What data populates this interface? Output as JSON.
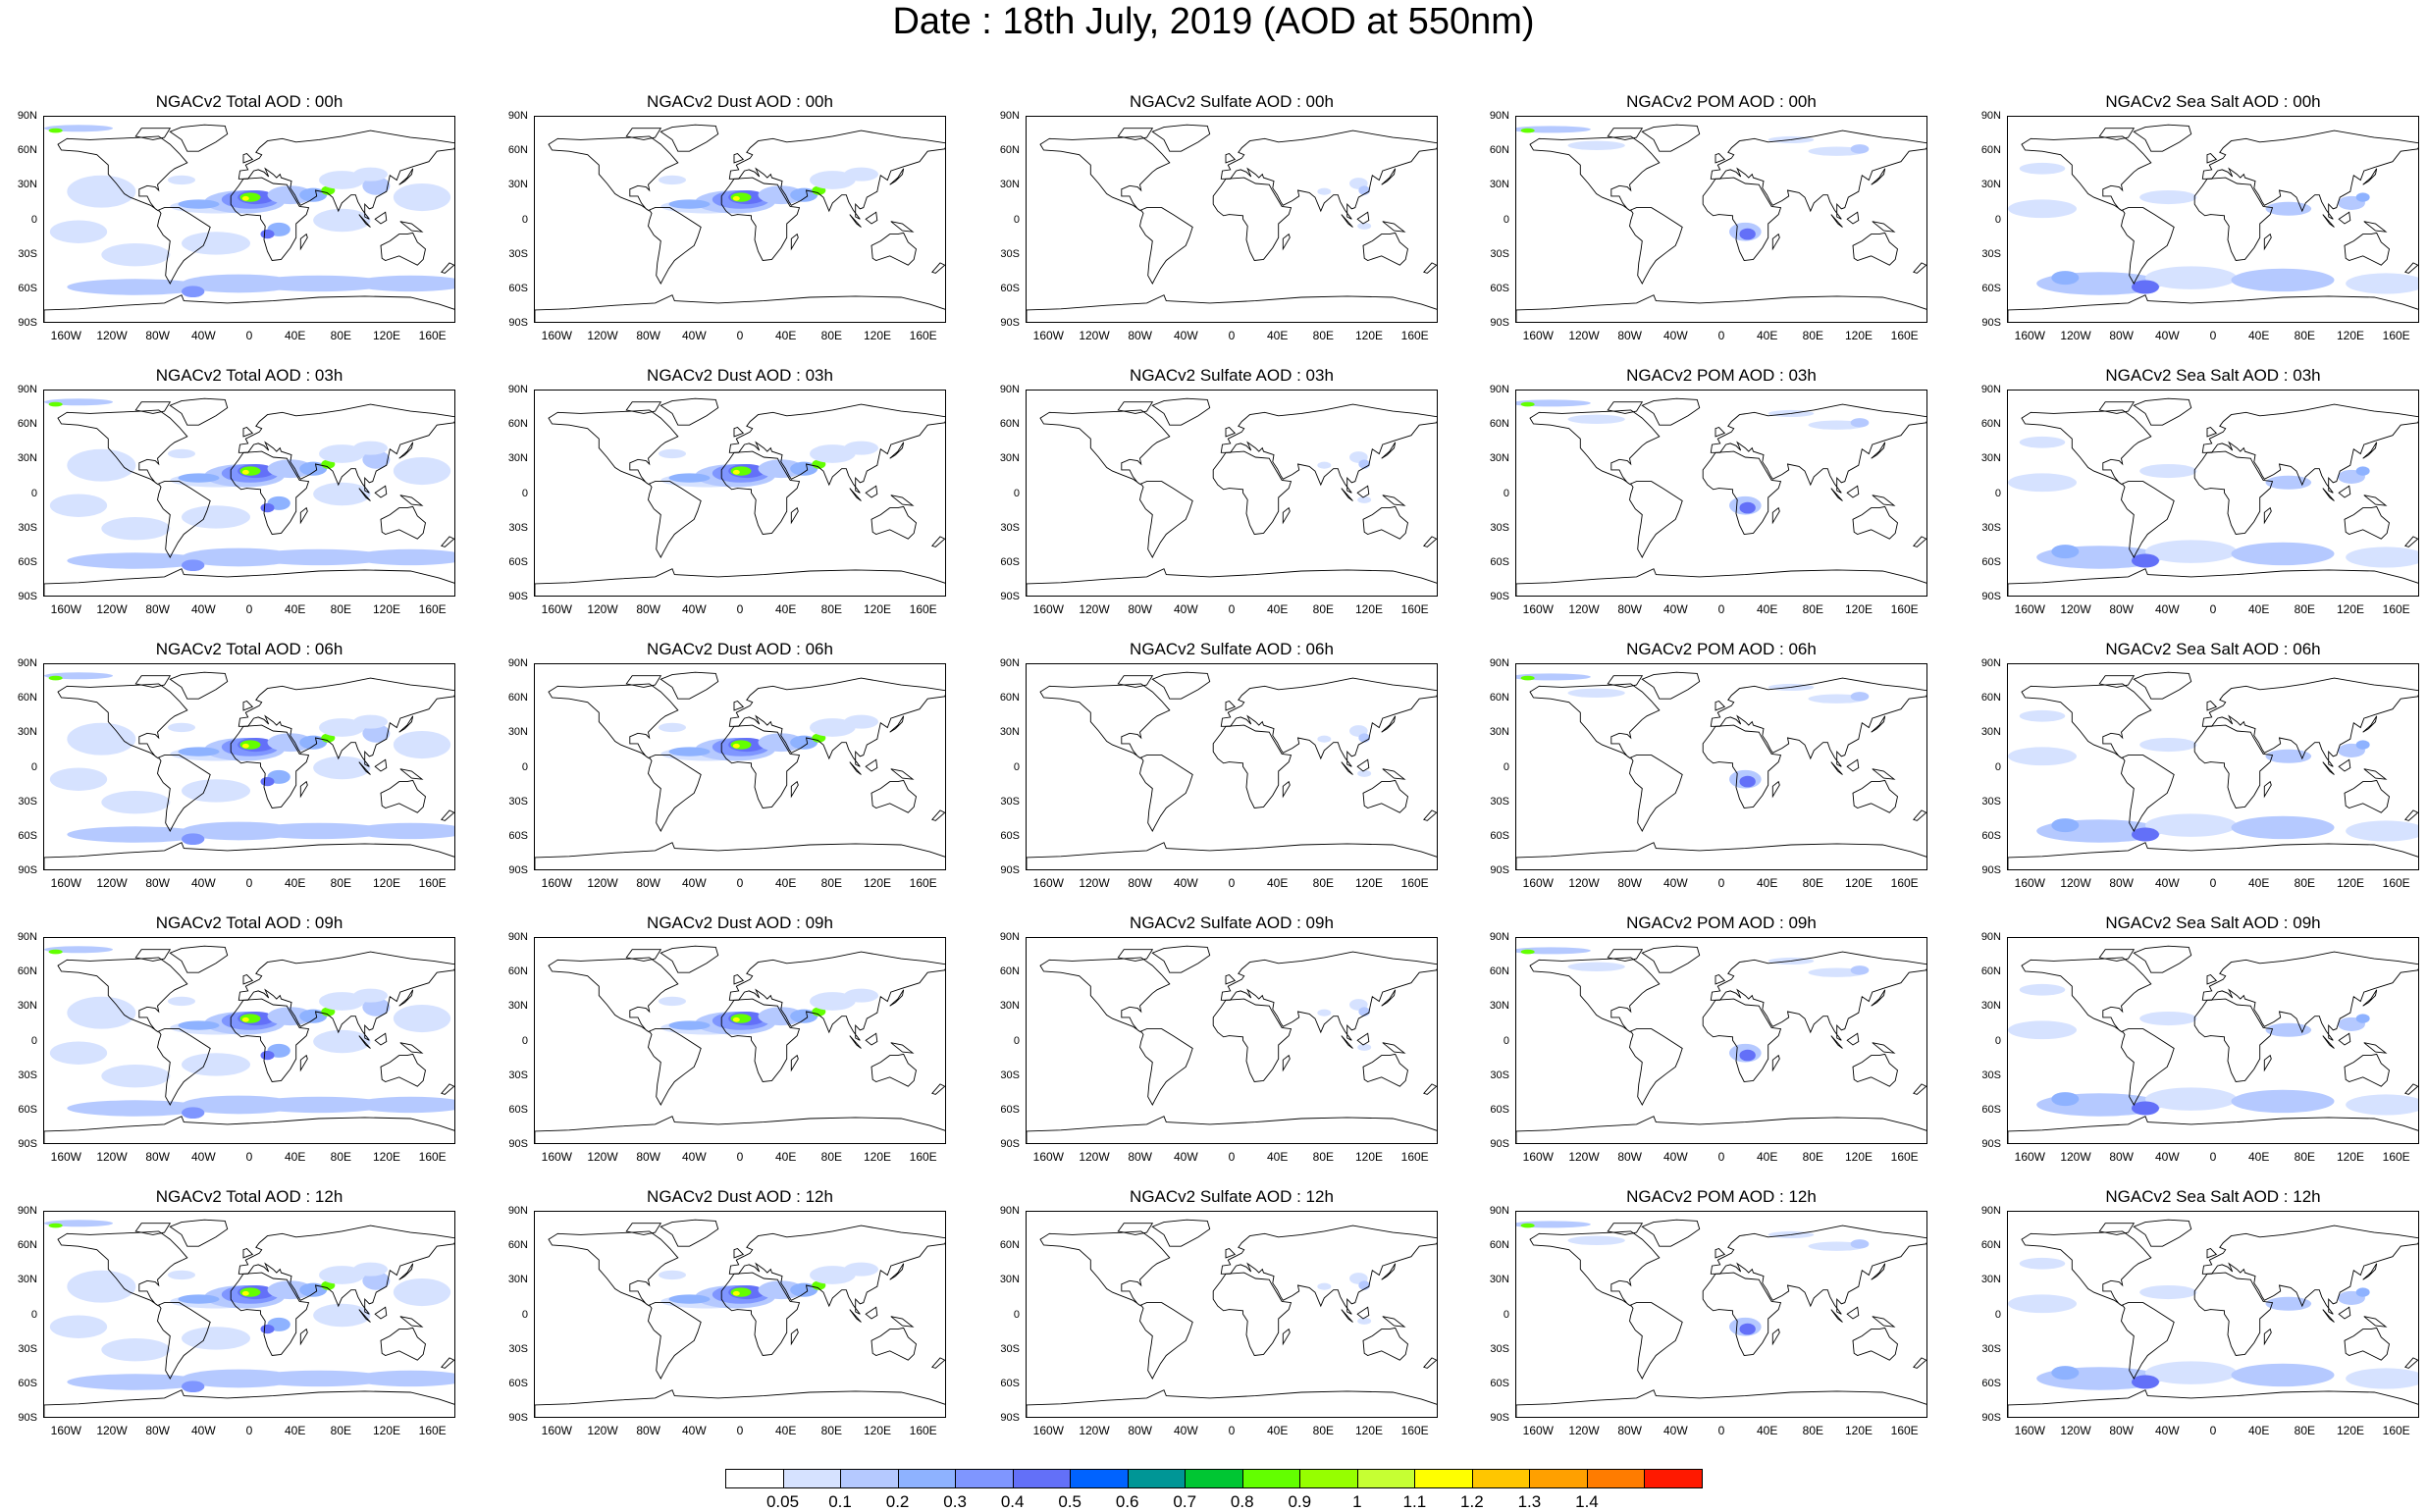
{
  "title": "Date : 18th July, 2019 (AOD at 550nm)",
  "panels": [
    [
      "NGACv2 Total AOD : 00h",
      "NGACv2 Dust AOD : 00h",
      "NGACv2 Sulfate AOD : 00h",
      "NGACv2 POM AOD : 00h",
      "NGACv2 Sea Salt AOD : 00h"
    ],
    [
      "NGACv2 Total AOD : 03h",
      "NGACv2 Dust AOD : 03h",
      "NGACv2 Sulfate AOD : 03h",
      "NGACv2 POM AOD : 03h",
      "NGACv2 Sea Salt AOD : 03h"
    ],
    [
      "NGACv2 Total AOD : 06h",
      "NGACv2 Dust AOD : 06h",
      "NGACv2 Sulfate AOD : 06h",
      "NGACv2 POM AOD : 06h",
      "NGACv2 Sea Salt AOD : 06h"
    ],
    [
      "NGACv2 Total AOD : 09h",
      "NGACv2 Dust AOD : 09h",
      "NGACv2 Sulfate AOD : 09h",
      "NGACv2 POM AOD : 09h",
      "NGACv2 Sea Salt  AOD : 09h"
    ],
    [
      "NGACv2 Total AOD : 12h",
      "NGACv2 Dust AOD : 12h",
      "NGACv2 Sulfate AOD : 12h",
      "NGACv2 POM  AOD : 12h",
      "NGACv2 Sea Salt AOD : 12h"
    ]
  ],
  "lat_ticks": [
    "90N",
    "60N",
    "30N",
    "0",
    "30S",
    "60S",
    "90S"
  ],
  "lon_ticks": [
    "160W",
    "120W",
    "80W",
    "40W",
    "0",
    "40E",
    "80E",
    "120E",
    "160E"
  ],
  "colorbar": {
    "labels": [
      "0.05",
      "0.1",
      "0.2",
      "0.3",
      "0.4",
      "0.5",
      "0.6",
      "0.7",
      "0.8",
      "0.9",
      "1",
      "1.1",
      "1.2",
      "1.3",
      "1.4"
    ],
    "colors": [
      "#ffffff",
      "#d6e2ff",
      "#b5c9ff",
      "#8eb2ff",
      "#7f96ff",
      "#6370f8",
      "#0063ff",
      "#009696",
      "#00c633",
      "#63ff00",
      "#96ff00",
      "#c6ff33",
      "#ffff00",
      "#ffc600",
      "#ffa000",
      "#ff7c00",
      "#ff1900"
    ]
  }
}
